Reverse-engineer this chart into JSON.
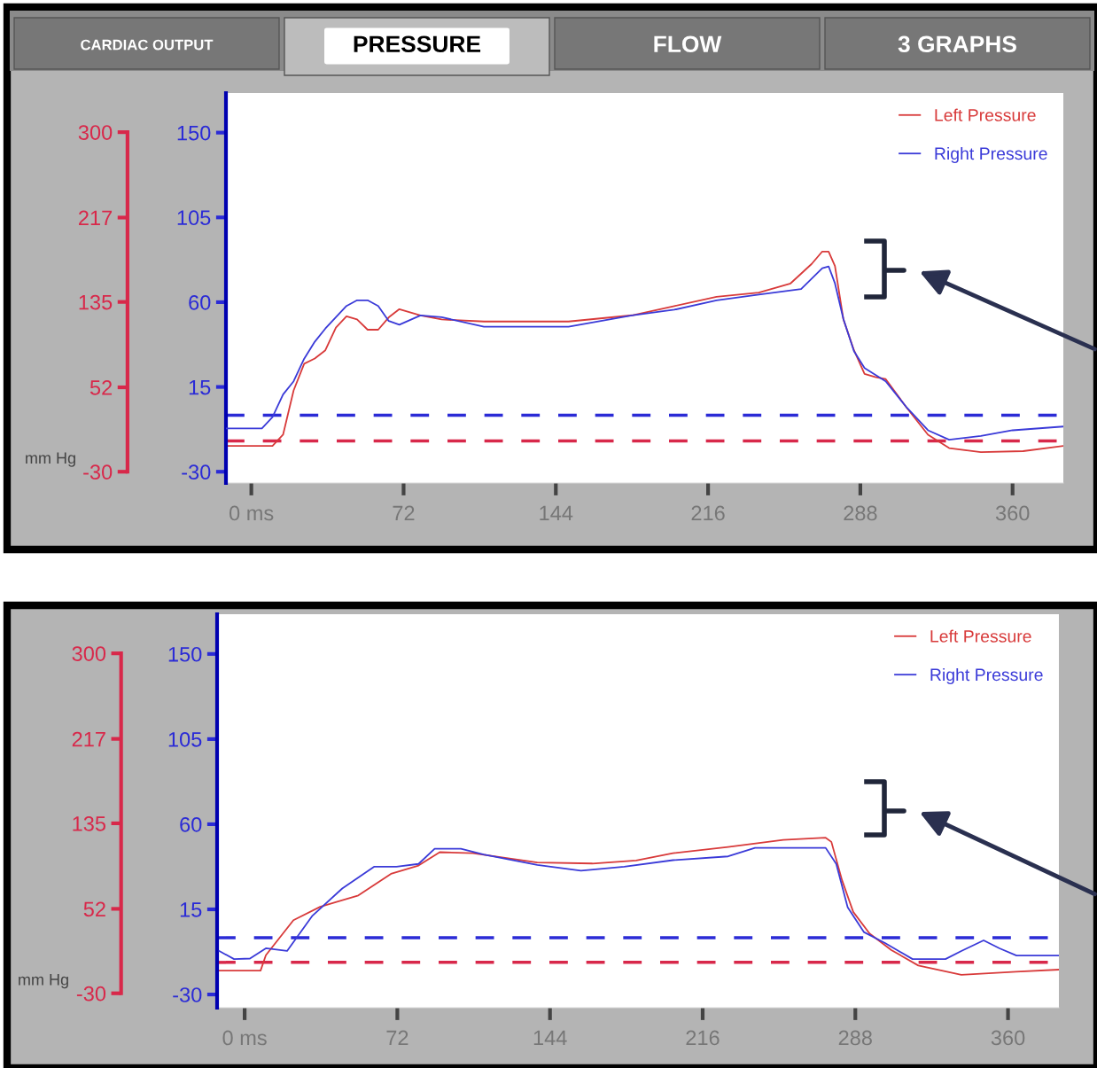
{
  "chart_data": [
    {
      "type": "line",
      "annotations": [
        "CARDIAC OUTPUT",
        "PRESSURE",
        "FLOW",
        "3 GRAPHS"
      ],
      "ylabel": "mm Hg",
      "legend": "top right",
      "grid": false,
      "xlim": [
        -12,
        384
      ],
      "xticks": [
        {
          "value": 0,
          "label": "0 ms"
        },
        72,
        144,
        216,
        288,
        360
      ],
      "ylim": [
        -41,
        338
      ],
      "yticks": [
        -30,
        52,
        135,
        217,
        300
      ],
      "y2lim": [
        -36,
        171
      ],
      "y2ticks": [
        -30,
        15,
        60,
        105,
        150
      ],
      "ref_lines": [
        {
          "axis": "y2",
          "value": 0,
          "color": "#2b2bd6",
          "line_style": "dashed"
        },
        {
          "axis": "y",
          "value": 0,
          "color": "#d8284a",
          "line_style": "dashed"
        }
      ],
      "series": [
        {
          "name": "Left Pressure",
          "color": "#d83a3a",
          "axis": "y",
          "x": [
            -12,
            10,
            15,
            20,
            25,
            30,
            35,
            40,
            45,
            50,
            55,
            60,
            65,
            70,
            80,
            90,
            110,
            130,
            150,
            180,
            200,
            220,
            240,
            255,
            265,
            270,
            273,
            276,
            280,
            285,
            290,
            295,
            300,
            310,
            320,
            330,
            345,
            365,
            384
          ],
          "values": [
            -5,
            -5,
            6,
            49,
            75,
            80,
            88,
            110,
            121,
            118,
            108,
            108,
            120,
            128,
            122,
            118,
            116,
            116,
            116,
            122,
            131,
            140,
            144,
            153,
            172,
            184,
            184,
            170,
            118,
            88,
            65,
            62,
            60,
            32,
            6,
            -7,
            -11,
            -10,
            -5
          ]
        },
        {
          "name": "Right Pressure",
          "color": "#3a3ad8",
          "axis": "y2",
          "x": [
            -12,
            5,
            10,
            15,
            20,
            25,
            30,
            35,
            40,
            45,
            50,
            55,
            60,
            65,
            70,
            80,
            90,
            110,
            150,
            180,
            200,
            220,
            240,
            260,
            270,
            273,
            276,
            280,
            285,
            290,
            300,
            310,
            320,
            330,
            345,
            360,
            384
          ],
          "values": [
            -7,
            -7,
            -1,
            11,
            18,
            30,
            39,
            46,
            52,
            58,
            61,
            61,
            58,
            50,
            48,
            53,
            52,
            47,
            47,
            53,
            56,
            61,
            64,
            67,
            78,
            79,
            70,
            51,
            34,
            25,
            18,
            4,
            -8,
            -13,
            -11,
            -8,
            -6
          ]
        }
      ]
    },
    {
      "type": "line",
      "ylabel": "mm Hg",
      "legend": "top right",
      "grid": false,
      "xlim": [
        -13,
        384
      ],
      "xticks": [
        {
          "value": 0,
          "label": "0 ms"
        },
        72,
        144,
        216,
        288,
        360
      ],
      "ylim": [
        -44,
        338
      ],
      "yticks": [
        -30,
        52,
        135,
        217,
        300
      ],
      "y2lim": [
        -37,
        171
      ],
      "y2ticks": [
        -30,
        15,
        60,
        105,
        150
      ],
      "ref_lines": [
        {
          "axis": "y2",
          "value": 0,
          "color": "#2b2bd6",
          "line_style": "dashed"
        },
        {
          "axis": "y",
          "value": 0,
          "color": "#d8284a",
          "line_style": "dashed"
        }
      ],
      "series": [
        {
          "name": "Left Pressure",
          "color": "#d83a3a",
          "axis": "y",
          "x": [
            -12,
            7.5,
            10,
            23,
            35.6,
            53.6,
            69,
            82,
            92,
            107.6,
            138,
            164,
            184.6,
            202,
            228,
            254,
            274,
            276.7,
            281.7,
            287,
            294.7,
            305,
            317.7,
            338,
            363.8,
            384
          ],
          "values": [
            -8,
            -8,
            7,
            41,
            54,
            65,
            86,
            94,
            107,
            106,
            97,
            96,
            99,
            106,
            112,
            119,
            121,
            117,
            80,
            49,
            28,
            12,
            -3,
            -12,
            -9,
            -7
          ]
        },
        {
          "name": "Right Pressure",
          "color": "#3a3ad8",
          "axis": "y2",
          "x": [
            -12,
            -5,
            2.5,
            10,
            20,
            32,
            46,
            61,
            71.6,
            82,
            89.6,
            102,
            112.7,
            138,
            158.6,
            179,
            202,
            228,
            240.7,
            274,
            279,
            284.4,
            292,
            302,
            315,
            330.5,
            338,
            348.5,
            356,
            364,
            384
          ],
          "values": [
            -7,
            -11.3,
            -11,
            -5.6,
            -7,
            11.7,
            26,
            37.5,
            37.5,
            39,
            47,
            47,
            44,
            38.5,
            35.4,
            37.5,
            41,
            43,
            47.5,
            47.5,
            39,
            16,
            3,
            -2.8,
            -11.3,
            -11.3,
            -7,
            -1.4,
            -5.6,
            -9.4,
            -9.4
          ]
        }
      ]
    }
  ]
}
